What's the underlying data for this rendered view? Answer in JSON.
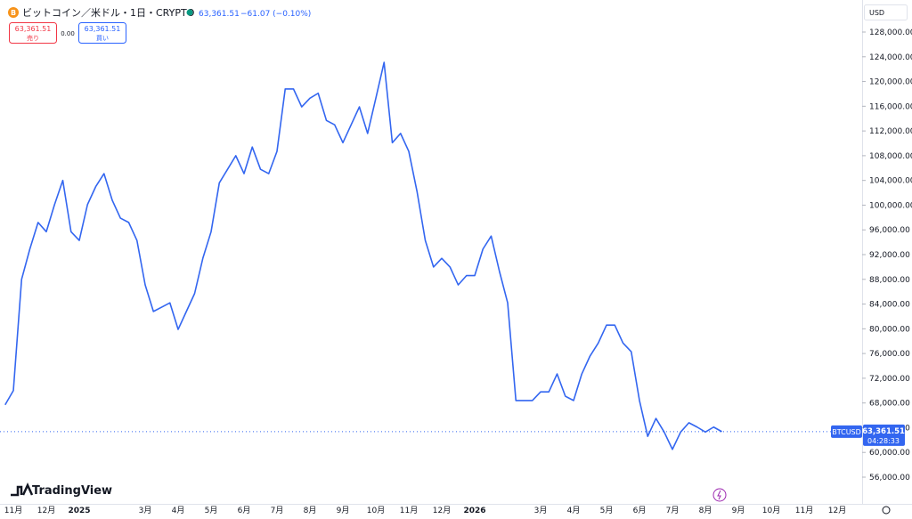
{
  "header": {
    "title": "ビットコイン／米ドル・1日・CRYPTO",
    "price": "63,361.51",
    "change": "−61.07 (−0.10%)",
    "sell_price": "63,361.51",
    "sell_label": "売り",
    "spread": "0.00",
    "buy_price": "63,361.51",
    "buy_label": "買い"
  },
  "currency": "USD",
  "symbol_badge": "BTCUSD",
  "countdown": "04:28:33",
  "brand": "TradingView",
  "chart_data": {
    "type": "line",
    "categories": [
      null,
      "11月",
      null,
      null,
      null,
      "12月",
      null,
      null,
      null,
      "2025",
      null,
      null,
      null,
      null,
      null,
      null,
      null,
      "3月",
      null,
      null,
      null,
      "4月",
      null,
      null,
      null,
      "5月",
      null,
      null,
      null,
      "6月",
      null,
      null,
      null,
      "7月",
      null,
      null,
      null,
      "8月",
      null,
      null,
      null,
      "9月",
      null,
      null,
      null,
      "10月",
      null,
      null,
      null,
      "11月",
      null,
      null,
      null,
      "12月",
      null,
      null,
      null,
      "2026",
      null,
      null,
      null,
      null,
      null,
      null,
      null,
      "3月",
      null,
      null,
      null,
      "4月",
      null,
      null,
      null,
      "5月",
      null,
      null,
      null,
      "6月",
      null,
      null,
      null,
      "7月",
      null,
      null,
      null,
      "8月",
      null,
      null,
      null,
      "9月",
      null,
      null,
      null,
      "10月",
      null,
      null,
      null,
      "11月",
      null,
      null,
      null,
      "12月",
      null
    ],
    "series": [
      {
        "name": "BTCUSD",
        "color": "#3366f0",
        "values": [
          67700,
          70000,
          88000,
          92900,
          97200,
          95700,
          100100,
          104000,
          95700,
          94300,
          100100,
          103000,
          105100,
          100800,
          97900,
          97200,
          94300,
          87100,
          82800,
          83500,
          84200,
          79900,
          82800,
          85700,
          91400,
          95700,
          103600,
          105800,
          108000,
          105100,
          109400,
          105800,
          105100,
          108700,
          118800,
          118800,
          115900,
          117300,
          118100,
          113700,
          113000,
          110100,
          113000,
          115900,
          111600,
          117300,
          123100,
          110100,
          111600,
          108700,
          102200,
          94300,
          90000,
          91400,
          90000,
          87100,
          88600,
          88600,
          92900,
          95000,
          89300,
          84200,
          68400,
          68400,
          68400,
          69800,
          69800,
          72700,
          69100,
          68400,
          72700,
          75600,
          77700,
          80600,
          80600,
          77700,
          76300,
          68400,
          62600,
          65500,
          63300,
          60500,
          63300,
          64800,
          64100,
          63300,
          64100,
          63361.51,
          null,
          null,
          null,
          null,
          null,
          null,
          null,
          null,
          null,
          null,
          null,
          null,
          null,
          null,
          null
        ],
        "value_labels": {
          "87": "63,361.51"
        }
      }
    ],
    "ylim": [
      51680,
      133184
    ],
    "yticks": [
      {
        "value": 56000,
        "label": "56,000.00"
      },
      {
        "value": 60000,
        "label": "60,000.00"
      },
      {
        "value": 64000,
        "label": "64,000.00"
      },
      {
        "value": 68000,
        "label": "68,000.00"
      },
      {
        "value": 72000,
        "label": "72,000.00"
      },
      {
        "value": 76000,
        "label": "76,000.00"
      },
      {
        "value": 80000,
        "label": "80,000.00"
      },
      {
        "value": 84000,
        "label": "84,000.00"
      },
      {
        "value": 88000,
        "label": "88,000.00"
      },
      {
        "value": 92000,
        "label": "92,000.00"
      },
      {
        "value": 96000,
        "label": "96,000.00"
      },
      {
        "value": 100000,
        "label": "100,000.00"
      },
      {
        "value": 104000,
        "label": "104,000.00"
      },
      {
        "value": 108000,
        "label": "108,000.00"
      },
      {
        "value": 112000,
        "label": "112,000.00"
      },
      {
        "value": 116000,
        "label": "116,000.00"
      },
      {
        "value": 120000,
        "label": "120,000.00"
      },
      {
        "value": 124000,
        "label": "124,000.00"
      },
      {
        "value": 128000,
        "label": "128,000.00"
      }
    ]
  }
}
